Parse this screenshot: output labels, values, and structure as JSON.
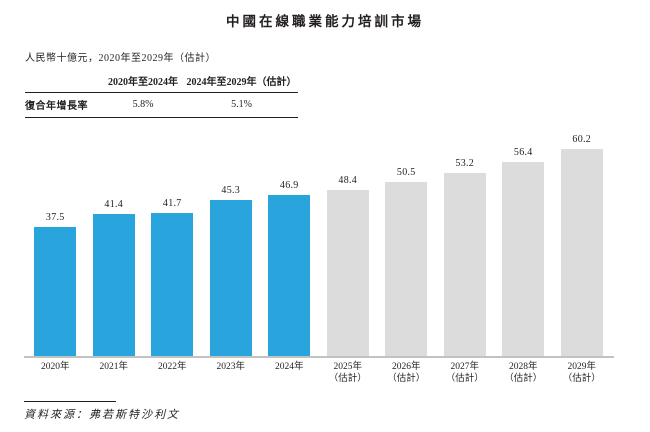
{
  "page": {
    "title": "中國在線職業能力培訓市場",
    "subtitle": "人民幣十億元，2020年至2029年（估計）",
    "source": "資料來源：弗若斯特沙利文"
  },
  "cagr_table": {
    "row_label": "復合年增長率",
    "col_headers": [
      "2020年至2024年",
      "2024年至2029年（估計）"
    ],
    "row_values": [
      "5.8%",
      "5.1%"
    ]
  },
  "chart_data": {
    "type": "bar",
    "title": "中國在線職業能力培訓市場",
    "ylabel": "人民幣十億元",
    "categories": [
      "2020年",
      "2021年",
      "2022年",
      "2023年",
      "2024年",
      "2025年（估計）",
      "2026年（估計）",
      "2027年（估計）",
      "2028年（估計）",
      "2029年（估計）"
    ],
    "values": [
      37.5,
      41.4,
      41.7,
      45.3,
      46.9,
      48.4,
      50.5,
      53.2,
      56.4,
      60.2
    ],
    "estimated": [
      false,
      false,
      false,
      false,
      false,
      true,
      true,
      true,
      true,
      true
    ],
    "colors": {
      "historical": "#29a4dc",
      "estimate": "#dcdcdc"
    },
    "ylim": [
      0,
      62
    ],
    "data_labels": true,
    "grid": false,
    "legend": false
  }
}
